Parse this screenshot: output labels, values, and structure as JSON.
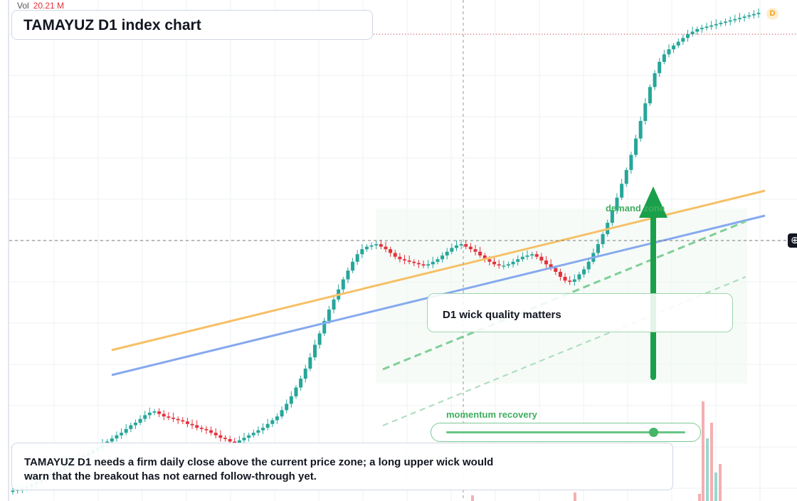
{
  "header": {
    "vol_label": "Vol",
    "vol_value": "20.21 M",
    "title": "TAMAYUZ D1 index chart",
    "interval_badge": "D"
  },
  "annotations": {
    "wick_note": "D1 wick quality matters",
    "demand_label": "demand zone",
    "momentum_label": "momentum recovery",
    "momentum_level": 0.87,
    "commentary": "TAMAYUZ D1 needs a firm daily close above the current price zone; a long upper wick would warn that the breakout has not earned follow-through yet."
  },
  "colors": {
    "up": "#26a69a",
    "down": "#e2323c",
    "trend_orange": "#f6c066",
    "trend_blue": "#86a9ee",
    "zone_green": "#3fae5e",
    "arrow_green": "#1aa04a"
  },
  "icons": {
    "crosshair": "crosshair-plus-icon"
  },
  "chart_data": {
    "type": "candlestick",
    "closes": [
      12,
      14,
      16,
      18,
      22,
      25,
      30,
      34,
      38,
      42,
      46,
      50,
      56,
      60,
      64,
      68,
      72,
      76,
      80,
      86,
      90,
      95,
      100,
      104,
      110,
      116,
      120,
      126,
      132,
      136,
      138,
      134,
      130,
      128,
      126,
      124,
      122,
      118,
      116,
      112,
      110,
      108,
      104,
      100,
      96,
      94,
      90,
      88,
      92,
      96,
      100,
      104,
      108,
      112,
      118,
      124,
      130,
      140,
      150,
      162,
      176,
      190,
      206,
      224,
      244,
      262,
      282,
      300,
      316,
      332,
      348,
      362,
      376,
      388,
      396,
      400,
      402,
      404,
      400,
      396,
      390,
      384,
      380,
      378,
      376,
      374,
      372,
      370,
      372,
      376,
      380,
      386,
      392,
      398,
      402,
      404,
      400,
      396,
      392,
      386,
      380,
      376,
      372,
      370,
      370,
      372,
      376,
      380,
      384,
      386,
      388,
      384,
      378,
      372,
      366,
      360,
      352,
      346,
      344,
      348,
      356,
      364,
      376,
      390,
      404,
      420,
      438,
      458,
      478,
      500,
      522,
      546,
      572,
      600,
      628,
      654,
      676,
      694,
      706,
      714,
      720,
      726,
      732,
      738,
      742,
      746,
      748,
      750,
      752,
      754,
      756,
      758,
      760,
      762,
      764,
      766,
      768,
      770,
      772
    ]
  }
}
